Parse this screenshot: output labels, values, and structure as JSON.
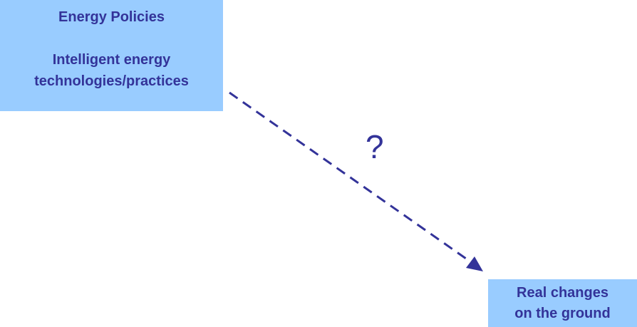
{
  "source_box": {
    "heading": "Energy Policies",
    "line1": "Intelligent energy",
    "line2": "technologies/practices"
  },
  "target_box": {
    "line1": "Real changes",
    "line2": "on the ground"
  },
  "connector": {
    "label": "?",
    "style": "dashed",
    "direction": "source-to-target",
    "color": "#333399"
  },
  "colors": {
    "box_fill": "#99ccff",
    "text": "#333399",
    "background": "#ffffff"
  }
}
